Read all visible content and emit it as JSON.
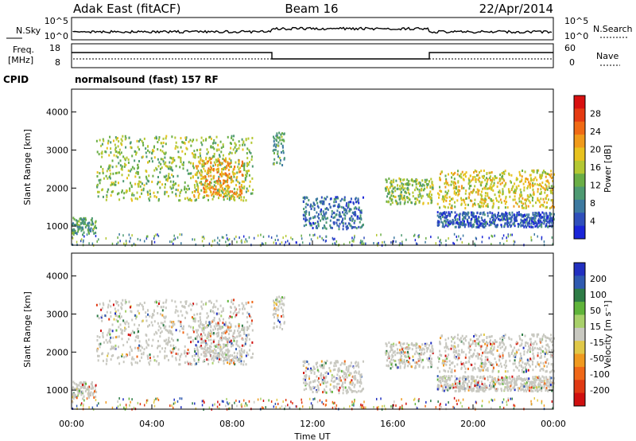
{
  "header": {
    "station": "Adak East (fitACF)",
    "beam": "Beam 16",
    "date": "22/Apr/2014"
  },
  "noise_panel": {
    "left_label": "N.Sky",
    "right_label": "N.Search",
    "left_ticks": [
      "10^5",
      "10^0"
    ],
    "right_ticks": [
      "10^5",
      "10^0"
    ]
  },
  "freq_panel": {
    "left_label_1": "Freq.",
    "left_label_2": "[MHz]",
    "right_label": "Nave",
    "left_ticks": [
      "18",
      "8"
    ],
    "right_ticks": [
      "60",
      "0"
    ]
  },
  "cpid_panel": {
    "label": "CPID",
    "text": "normalsound (fast) 157 RF"
  },
  "colors": {
    "power_scale": [
      "#1a25d8",
      "#2f4fbb",
      "#3d7aa0",
      "#4e9a72",
      "#6aae46",
      "#b4c833",
      "#e8c21e",
      "#f09a1a",
      "#f06a14",
      "#e53a12",
      "#d81010"
    ],
    "velocity_scale": [
      "#2230c0",
      "#2f5ab0",
      "#2e7c46",
      "#5fb43a",
      "#a8d06a",
      "#c8c8c0",
      "#e0c848",
      "#f09a20",
      "#f06818",
      "#e03a14",
      "#d01010"
    ]
  },
  "chart_data": [
    {
      "type": "heatmap",
      "name": "power",
      "ylabel": "Slant Range [km]",
      "yticks": [
        "1000",
        "2000",
        "3000",
        "4000"
      ],
      "ylim": [
        500,
        4600
      ],
      "colorbar_label": "Power [dB]",
      "colorbar_ticks": [
        "4",
        "8",
        "12",
        "16",
        "20",
        "24",
        "28"
      ],
      "colorbar_range": [
        0,
        32
      ],
      "echo_regions": [
        {
          "t_start": 0.0,
          "t_end": 1.2,
          "range_start": 800,
          "range_end": 1250,
          "power": 10
        },
        {
          "t_start": 1.2,
          "t_end": 9.0,
          "range_start": 1700,
          "range_end": 3400,
          "power": 14
        },
        {
          "t_start": 6.0,
          "t_end": 8.5,
          "range_start": 1800,
          "range_end": 2800,
          "power": 22
        },
        {
          "t_start": 10.0,
          "t_end": 10.6,
          "range_start": 2600,
          "range_end": 3500,
          "power": 10
        },
        {
          "t_start": 11.5,
          "t_end": 14.5,
          "range_start": 950,
          "range_end": 1800,
          "power": 6
        },
        {
          "t_start": 15.6,
          "t_end": 18.0,
          "range_start": 1600,
          "range_end": 2300,
          "power": 14
        },
        {
          "t_start": 18.2,
          "t_end": 24.0,
          "range_start": 1500,
          "range_end": 2500,
          "power": 18
        },
        {
          "t_start": 18.2,
          "t_end": 24.0,
          "range_start": 1000,
          "range_end": 1400,
          "power": 4
        }
      ]
    },
    {
      "type": "heatmap",
      "name": "velocity",
      "ylabel": "Slant Range [km]",
      "yticks": [
        "1000",
        "2000",
        "3000",
        "4000"
      ],
      "ylim": [
        500,
        4600
      ],
      "colorbar_label": "Velocity [m s⁻¹]",
      "colorbar_ticks": [
        "200",
        "100",
        "50",
        "15",
        "-15",
        "-50",
        "-100",
        "-200"
      ],
      "colorbar_range": [
        -250,
        250
      ],
      "xlabel": "Time UT",
      "xticks": [
        "00:00",
        "04:00",
        "08:00",
        "12:00",
        "16:00",
        "20:00",
        "00:00"
      ],
      "xlim": [
        0,
        24
      ]
    }
  ]
}
